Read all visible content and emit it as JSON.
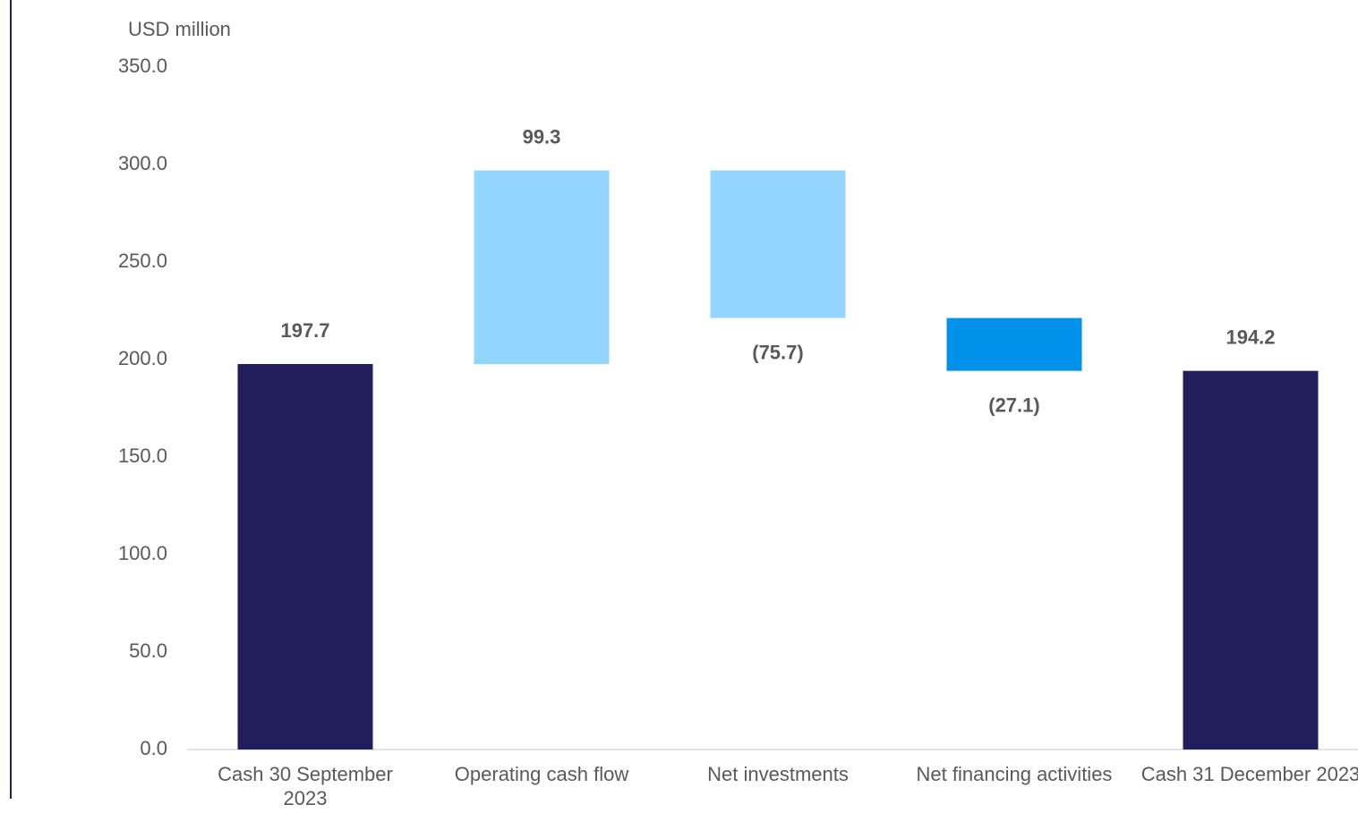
{
  "chart_data": {
    "type": "waterfall",
    "y_axis_label": "USD million",
    "categories": [
      "Cash 30 September 2023",
      "Operating cash flow",
      "Net investments",
      "Net financing activities",
      "Cash 31 December 2023"
    ],
    "values": [
      197.7,
      99.3,
      -75.7,
      -27.1,
      194.2
    ],
    "value_labels": [
      "197.7",
      "99.3",
      "(75.7)",
      "(27.1)",
      "194.2"
    ],
    "measure": [
      "absolute",
      "relative",
      "relative",
      "relative",
      "absolute"
    ],
    "colors": [
      "#221f5c",
      "#93d5fd",
      "#93d5fd",
      "#0091ea",
      "#221f5c"
    ],
    "ylim": [
      0,
      350
    ],
    "yticks": [
      {
        "value": 0,
        "label": "0.0"
      },
      {
        "value": 50,
        "label": "50.0"
      },
      {
        "value": 100,
        "label": "100.0"
      },
      {
        "value": 150,
        "label": "150.0"
      },
      {
        "value": 200,
        "label": "200.0"
      },
      {
        "value": 250,
        "label": "250.0"
      },
      {
        "value": 300,
        "label": "300.0"
      },
      {
        "value": 350,
        "label": "350.0"
      }
    ],
    "grid": false
  }
}
